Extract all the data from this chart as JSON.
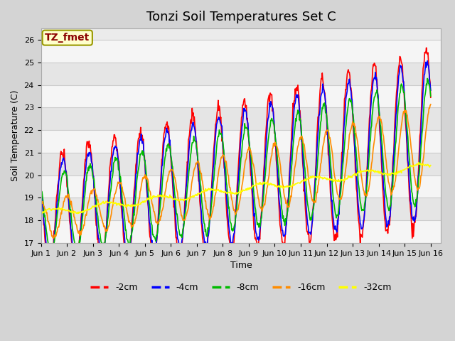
{
  "title": "Tonzi Soil Temperatures Set C",
  "xlabel": "Time",
  "ylabel": "Soil Temperature (C)",
  "ylim": [
    17.0,
    26.5
  ],
  "annotation": "TZ_fmet",
  "annotation_color": "#8B0000",
  "annotation_bg": "#FFFFCC",
  "annotation_border": "#999900",
  "series": [
    {
      "label": "-2cm",
      "color": "#FF0000",
      "lw": 1.2
    },
    {
      "label": "-4cm",
      "color": "#0000FF",
      "lw": 1.2
    },
    {
      "label": "-8cm",
      "color": "#00BB00",
      "lw": 1.2
    },
    {
      "label": "-16cm",
      "color": "#FF8C00",
      "lw": 1.2
    },
    {
      "label": "-32cm",
      "color": "#FFFF00",
      "lw": 1.2
    }
  ],
  "grid_color": "#CCCCCC",
  "plot_bg": "#EBEBEB",
  "tick_positions": [
    1,
    2,
    3,
    4,
    5,
    6,
    7,
    8,
    9,
    10,
    11,
    12,
    13,
    14,
    15,
    16
  ],
  "tick_labels": [
    "Jun 1",
    "Jun 2",
    "Jun 3",
    "Jun 4",
    "Jun 5",
    "Jun 6",
    "Jun 7",
    "Jun 8",
    "Jun 9",
    "Jun 10",
    "Jun 11",
    "Jun 12",
    "Jun 13",
    "Jun 14",
    "Jun 15",
    "Jun 16"
  ],
  "title_fontsize": 13,
  "label_fontsize": 9,
  "tick_fontsize": 8,
  "legend_fontsize": 9
}
